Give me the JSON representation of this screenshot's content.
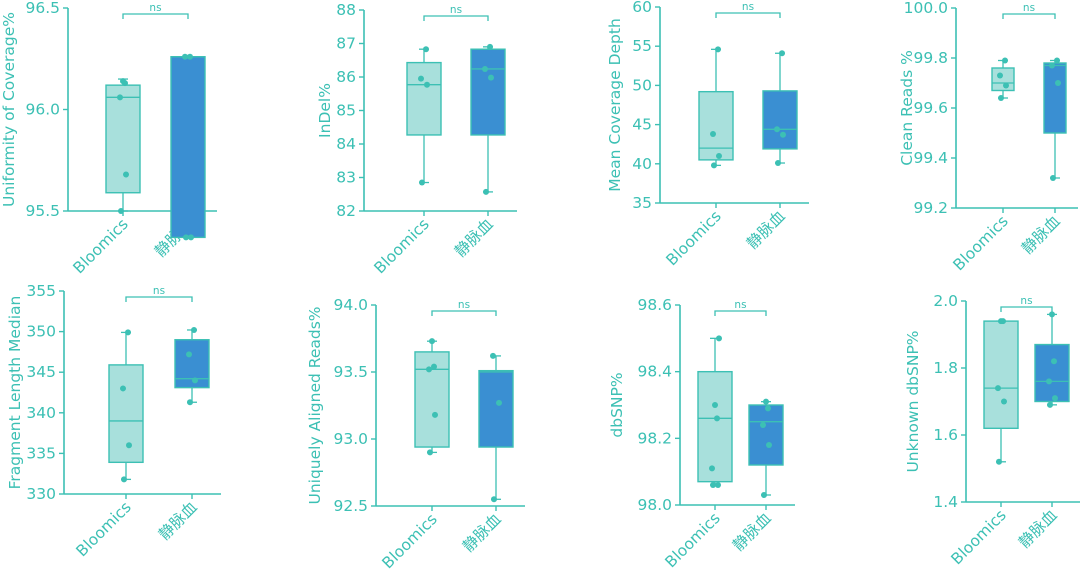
{
  "chart_data": [
    {
      "type": "box",
      "ylabel": "Uniformity of Coverage%",
      "ylim": [
        95.5,
        96.5
      ],
      "yticks": [
        95.5,
        96.0,
        96.5
      ],
      "tick_decimals": 1,
      "significance": "ns",
      "categories": [
        "Bloomics",
        "静脉血"
      ],
      "boxes": [
        {
          "name": "Bloomics",
          "min": 95.5,
          "q1": 95.59,
          "median": 96.06,
          "q3": 96.12,
          "max": 96.15,
          "points": [
            95.5,
            95.68,
            96.06,
            96.13,
            96.14
          ],
          "color": "#a8e0dc"
        },
        {
          "name": "静脉血",
          "min": 95.37,
          "q1": 95.37,
          "median": 96.26,
          "q3": 96.26,
          "max": 96.26,
          "points": [
            95.37,
            95.37,
            96.26,
            96.26
          ],
          "color": "#3a8fd2"
        }
      ]
    },
    {
      "type": "box",
      "ylabel": "InDel%",
      "ylim": [
        82,
        88
      ],
      "yticks": [
        82,
        83,
        84,
        85,
        86,
        87,
        88
      ],
      "tick_decimals": 0,
      "significance": "ns",
      "categories": [
        "Bloomics",
        "静脉血"
      ],
      "boxes": [
        {
          "name": "Bloomics",
          "min": 82.85,
          "q1": 84.27,
          "median": 85.77,
          "q3": 86.43,
          "max": 86.83,
          "points": [
            82.85,
            85.77,
            85.95,
            86.83
          ],
          "color": "#a8e0dc"
        },
        {
          "name": "静脉血",
          "min": 82.57,
          "q1": 84.27,
          "median": 86.24,
          "q3": 86.83,
          "max": 86.9,
          "points": [
            82.57,
            85.98,
            86.24,
            86.9
          ],
          "color": "#3a8fd2"
        }
      ]
    },
    {
      "type": "box",
      "ylabel": "Mean Coverage Depth",
      "ylim": [
        35,
        60
      ],
      "yticks": [
        35,
        40,
        45,
        50,
        55,
        60
      ],
      "tick_decimals": 0,
      "significance": "ns",
      "categories": [
        "Bloomics",
        "静脉血"
      ],
      "boxes": [
        {
          "name": "Bloomics",
          "min": 39.8,
          "q1": 40.5,
          "median": 42.0,
          "q3": 49.2,
          "max": 54.6,
          "points": [
            39.8,
            41.0,
            43.8,
            54.6
          ],
          "color": "#a8e0dc"
        },
        {
          "name": "静脉血",
          "min": 40.1,
          "q1": 41.9,
          "median": 44.4,
          "q3": 49.3,
          "max": 54.1,
          "points": [
            40.1,
            43.7,
            44.4,
            54.1
          ],
          "color": "#3a8fd2"
        }
      ]
    },
    {
      "type": "box",
      "ylabel": "Clean Reads %",
      "ylim": [
        99.2,
        100.0
      ],
      "yticks": [
        99.2,
        99.4,
        99.6,
        99.8,
        100.0
      ],
      "tick_decimals": 1,
      "significance": "ns",
      "categories": [
        "Bloomics",
        "静脉血"
      ],
      "boxes": [
        {
          "name": "Bloomics",
          "min": 99.64,
          "q1": 99.67,
          "median": 99.7,
          "q3": 99.76,
          "max": 99.79,
          "points": [
            99.64,
            99.69,
            99.73,
            99.79
          ],
          "color": "#a8e0dc"
        },
        {
          "name": "静脉血",
          "min": 99.32,
          "q1": 99.5,
          "median": 99.77,
          "q3": 99.78,
          "max": 99.79,
          "points": [
            99.32,
            99.7,
            99.77,
            99.79
          ],
          "color": "#3a8fd2"
        }
      ]
    },
    {
      "type": "box",
      "ylabel": "Fragment Length Median",
      "ylim": [
        330,
        355
      ],
      "yticks": [
        330,
        335,
        340,
        345,
        350,
        355
      ],
      "tick_decimals": 0,
      "significance": "ns",
      "categories": [
        "Bloomics",
        "静脉血"
      ],
      "boxes": [
        {
          "name": "Bloomics",
          "min": 331.8,
          "q1": 333.9,
          "median": 339.0,
          "q3": 345.9,
          "max": 349.9,
          "points": [
            331.8,
            336.0,
            343.0,
            349.9
          ],
          "color": "#a8e0dc"
        },
        {
          "name": "静脉血",
          "min": 341.3,
          "q1": 343.1,
          "median": 344.2,
          "q3": 349.0,
          "max": 350.2,
          "points": [
            341.3,
            344.0,
            347.2,
            350.2
          ],
          "color": "#3a8fd2"
        }
      ]
    },
    {
      "type": "box",
      "ylabel": "Uniquely Aligned Reads%",
      "ylim": [
        92.5,
        94.0
      ],
      "yticks": [
        92.5,
        93.0,
        93.5,
        94.0
      ],
      "tick_decimals": 1,
      "significance": "ns",
      "categories": [
        "Bloomics",
        "静脉血"
      ],
      "boxes": [
        {
          "name": "Bloomics",
          "min": 92.9,
          "q1": 92.94,
          "median": 93.52,
          "q3": 93.65,
          "max": 93.73,
          "points": [
            92.9,
            93.18,
            93.52,
            93.54,
            93.73
          ],
          "color": "#a8e0dc"
        },
        {
          "name": "静脉血",
          "min": 92.55,
          "q1": 92.94,
          "median": 93.5,
          "q3": 93.51,
          "max": 93.62,
          "points": [
            92.55,
            93.27,
            93.62
          ],
          "color": "#3a8fd2"
        }
      ]
    },
    {
      "type": "box",
      "ylabel": "dbSNP%",
      "ylim": [
        98.0,
        98.6
      ],
      "yticks": [
        98.0,
        98.2,
        98.4,
        98.6
      ],
      "tick_decimals": 1,
      "significance": "ns",
      "categories": [
        "Bloomics",
        "静脉血"
      ],
      "boxes": [
        {
          "name": "Bloomics",
          "min": 98.06,
          "q1": 98.07,
          "median": 98.26,
          "q3": 98.4,
          "max": 98.5,
          "points": [
            98.06,
            98.06,
            98.11,
            98.26,
            98.3,
            98.5
          ],
          "color": "#a8e0dc"
        },
        {
          "name": "静脉血",
          "min": 98.03,
          "q1": 98.12,
          "median": 98.25,
          "q3": 98.3,
          "max": 98.31,
          "points": [
            98.03,
            98.18,
            98.24,
            98.29,
            98.31
          ],
          "color": "#3a8fd2"
        }
      ]
    },
    {
      "type": "box",
      "ylabel": "Unknown dbSNP%",
      "ylim": [
        1.4,
        2.0
      ],
      "yticks": [
        1.4,
        1.6,
        1.8,
        2.0
      ],
      "tick_decimals": 1,
      "significance": "ns",
      "categories": [
        "Bloomics",
        "静脉血"
      ],
      "boxes": [
        {
          "name": "Bloomics",
          "min": 1.52,
          "q1": 1.62,
          "median": 1.74,
          "q3": 1.94,
          "max": 1.94,
          "points": [
            1.52,
            1.7,
            1.74,
            1.94,
            1.94
          ],
          "color": "#a8e0dc"
        },
        {
          "name": "静脉血",
          "min": 1.69,
          "q1": 1.7,
          "median": 1.76,
          "q3": 1.87,
          "max": 1.96,
          "points": [
            1.69,
            1.71,
            1.76,
            1.82,
            1.96
          ],
          "color": "#3a8fd2"
        }
      ]
    }
  ]
}
